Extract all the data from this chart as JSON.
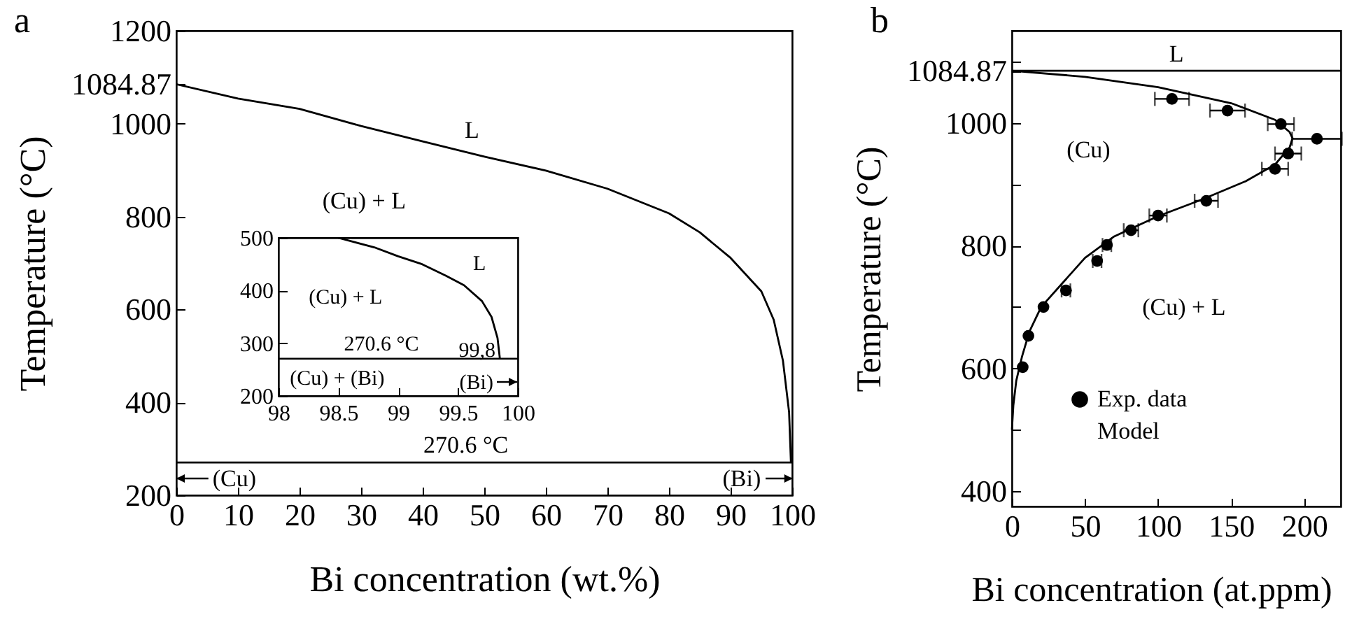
{
  "chart_data": [
    {
      "type": "line",
      "title": "a",
      "xlabel": "Bi concentration (wt.%)",
      "ylabel": "Temperature (°C)",
      "xlim": [
        0,
        100
      ],
      "xticks": [
        0,
        10,
        20,
        30,
        40,
        50,
        60,
        70,
        80,
        90,
        100
      ],
      "ylim": [
        200,
        1200
      ],
      "yticks": [
        200,
        400,
        600,
        800,
        1000,
        1084.87,
        1200
      ],
      "grid": false,
      "series": [
        {
          "color": "#000000",
          "x": [
            0,
            10,
            20,
            30,
            40,
            50,
            60,
            70,
            80,
            85,
            90,
            95,
            97,
            98.5,
            99.5,
            99.8
          ],
          "values": [
            1084.87,
            1054,
            1032,
            995,
            962,
            929,
            899,
            860,
            807,
            766,
            711,
            639,
            578,
            490,
            379,
            270.6
          ]
        }
      ],
      "ref_lines": [
        {
          "axis": "y",
          "value": 270.6,
          "label": "270.6 °C"
        }
      ],
      "annotations": [
        "L",
        "(Cu) + L",
        "(Cu)",
        "(Bi)"
      ]
    },
    {
      "type": "line",
      "xlim": [
        98,
        100
      ],
      "xticks": [
        98,
        98.5,
        99,
        99.5,
        100
      ],
      "ylim": [
        200,
        500
      ],
      "yticks": [
        200,
        300,
        400,
        500
      ],
      "grid": false,
      "series": [
        {
          "color": "#000000",
          "x": [
            98.5,
            98.8,
            99.0,
            99.2,
            99.4,
            99.55,
            99.7,
            99.78,
            99.83,
            99.85
          ],
          "values": [
            500,
            482,
            465,
            450,
            428,
            410,
            380,
            350,
            310,
            270.6
          ]
        }
      ],
      "ref_lines": [
        {
          "axis": "y",
          "value": 270.6,
          "label": "270.6 °C"
        }
      ],
      "annotations": [
        "L",
        "(Cu) + L",
        "99,8",
        "(Cu) + (Bi)",
        "(Bi)"
      ]
    },
    {
      "type": "line",
      "title": "b",
      "xlabel": "Bi concentration (at.ppm)",
      "ylabel": "Temperature (°C)",
      "xlim": [
        0,
        225
      ],
      "xticks": [
        0,
        50,
        100,
        150,
        200
      ],
      "ylim": [
        375,
        1150
      ],
      "yticks": [
        400,
        {
          "value": 500,
          "label": null
        },
        600,
        {
          "value": 700,
          "label": null
        },
        800,
        {
          "value": 900,
          "label": null
        },
        1000,
        1084.87,
        {
          "value": 1100,
          "label": null
        }
      ],
      "grid": false,
      "legend": "bottom left",
      "series": [
        {
          "name": "Exp. data",
          "type": "scatter",
          "marker": "circle",
          "color": "#000000",
          "x": [
            109.5,
            147.5,
            184,
            208.7,
            189,
            180,
            133,
            100,
            81.5,
            65,
            58.3,
            37,
            21.6,
            11.3,
            7.4
          ],
          "values": [
            1039,
            1020,
            998,
            974,
            950,
            925,
            873,
            849,
            825,
            801,
            775,
            727,
            700,
            653,
            602
          ],
          "xerrors": [
            11.7,
            12,
            9,
            17,
            9,
            9,
            8,
            6,
            5,
            3,
            3,
            3,
            null,
            null,
            null
          ]
        },
        {
          "name": "Model",
          "type": "line",
          "color": "#000000",
          "x": [
            0,
            50,
            100,
            150,
            180,
            190,
            192,
            190,
            180,
            160,
            130,
            100,
            70,
            50,
            35,
            20,
            12,
            7,
            3,
            1,
            0
          ],
          "values": [
            1084.87,
            1075,
            1058,
            1032,
            1005,
            985,
            975,
            960,
            932,
            905,
            875,
            848,
            815,
            780,
            740,
            700,
            660,
            620,
            580,
            540,
            500
          ]
        }
      ],
      "ref_lines": [
        {
          "axis": "y",
          "value": 1084.87
        }
      ],
      "annotations": [
        "L",
        "(Cu)",
        "(Cu) + L"
      ]
    }
  ]
}
